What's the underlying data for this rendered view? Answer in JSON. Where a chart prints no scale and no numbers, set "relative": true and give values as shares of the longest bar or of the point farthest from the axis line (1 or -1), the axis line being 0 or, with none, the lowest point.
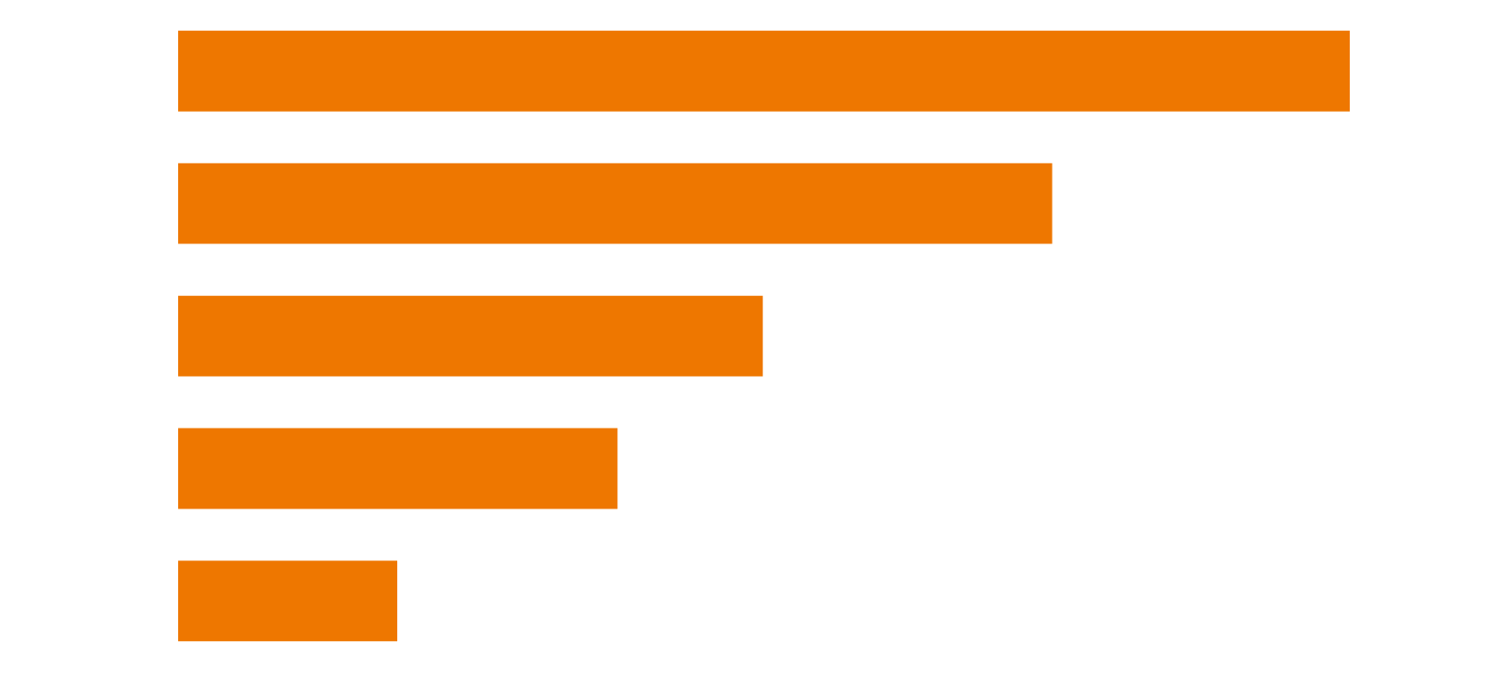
{
  "chart_data": {
    "type": "bar",
    "orientation": "horizontal",
    "relative": true,
    "categories": [
      null,
      null,
      null,
      null,
      null
    ],
    "values": [
      1,
      0.746,
      0.499,
      0.375,
      0.187
    ],
    "color": "#ee7700"
  }
}
